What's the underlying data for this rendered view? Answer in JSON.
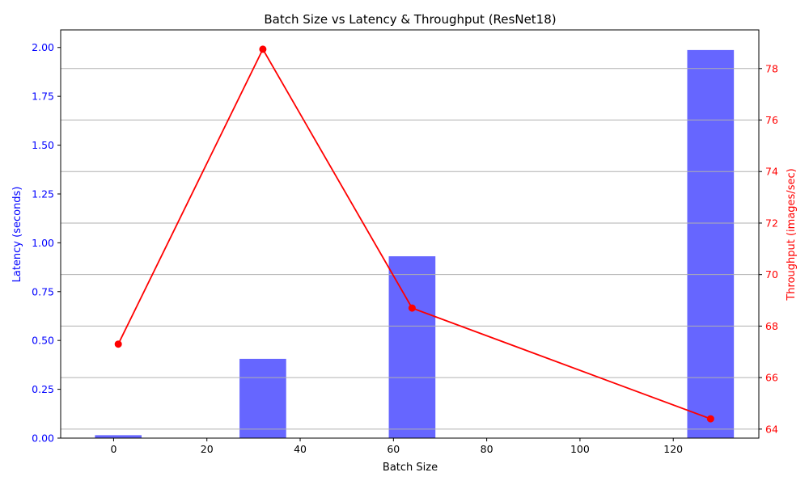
{
  "chart_data": {
    "type": "bar+line",
    "title": "Batch Size vs Latency & Throughput (ResNet18)",
    "xlabel": "Batch Size",
    "ylabel_left": "Latency (seconds)",
    "ylabel_right": "Throughput (images/sec)",
    "xlim": [
      -11.35,
      138.35
    ],
    "ylim_left": [
      0,
      2.09
    ],
    "ylim_right": [
      63.65,
      79.5
    ],
    "x_ticks": [
      0,
      20,
      40,
      60,
      80,
      100,
      120
    ],
    "y_left_ticks": [
      "0.00",
      "0.25",
      "0.50",
      "0.75",
      "1.00",
      "1.25",
      "1.50",
      "1.75",
      "2.00"
    ],
    "y_right_ticks": [
      "64",
      "66",
      "68",
      "70",
      "72",
      "74",
      "76",
      "78"
    ],
    "grid": "horizontal lines at right-axis ticks",
    "bar_width": 10,
    "series": [
      {
        "name": "Latency (seconds)",
        "kind": "bar",
        "axis": "left",
        "color": "#6666ff",
        "x": [
          1,
          32,
          64,
          128
        ],
        "values": [
          0.015,
          0.406,
          0.931,
          1.987
        ]
      },
      {
        "name": "Throughput (images/sec)",
        "kind": "line",
        "axis": "right",
        "color": "#ff0000",
        "x": [
          1,
          32,
          64,
          128
        ],
        "values": [
          67.3,
          78.75,
          68.7,
          64.4
        ]
      }
    ]
  }
}
